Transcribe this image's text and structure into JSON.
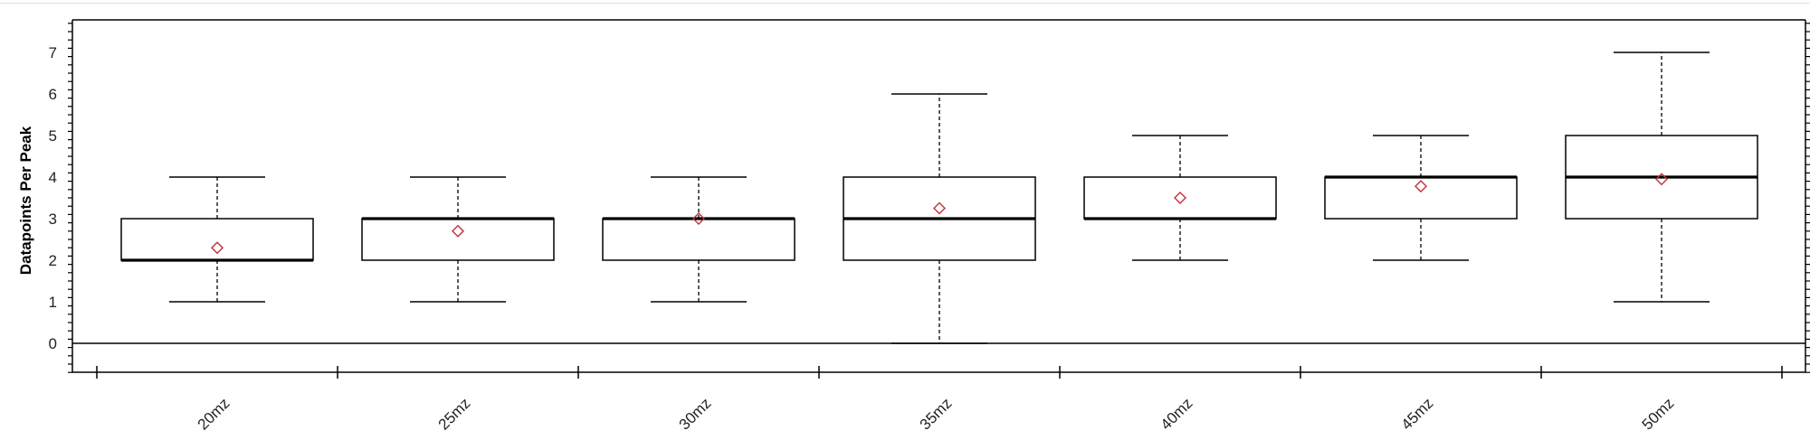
{
  "chart_data": {
    "type": "box",
    "title": "",
    "xlabel": "",
    "ylabel": "Datapoints Per Peak",
    "ylim": [
      -0.7,
      7.7
    ],
    "yticks": [
      0,
      1,
      2,
      3,
      4,
      5,
      6,
      7
    ],
    "grid": false,
    "legend": "none",
    "categories": [
      "20mz",
      "25mz",
      "30mz",
      "35mz",
      "40mz",
      "45mz",
      "50mz"
    ],
    "boxes": [
      {
        "category": "20mz",
        "min": 1,
        "q1": 2,
        "median": 2,
        "q3": 3,
        "max": 4,
        "mean": 2.3
      },
      {
        "category": "25mz",
        "min": 1,
        "q1": 2,
        "median": 3,
        "q3": 3,
        "max": 4,
        "mean": 2.7
      },
      {
        "category": "30mz",
        "min": 1,
        "q1": 2,
        "median": 3,
        "q3": 3,
        "max": 4,
        "mean": 3.0
      },
      {
        "category": "35mz",
        "min": 0,
        "q1": 2,
        "median": 3,
        "q3": 4,
        "max": 6,
        "mean": 3.25
      },
      {
        "category": "40mz",
        "min": 2,
        "q1": 3,
        "median": 3,
        "q3": 4,
        "max": 5,
        "mean": 3.5
      },
      {
        "category": "45mz",
        "min": 2,
        "q1": 3,
        "median": 4,
        "q3": 4,
        "max": 5,
        "mean": 3.78
      },
      {
        "category": "50mz",
        "min": 1,
        "q1": 3,
        "median": 4,
        "q3": 5,
        "max": 7,
        "mean": 3.95
      }
    ],
    "reference_line": 0,
    "colors": {
      "box": "#000000",
      "mean_marker": "#c0303a",
      "axis": "#000000"
    }
  }
}
